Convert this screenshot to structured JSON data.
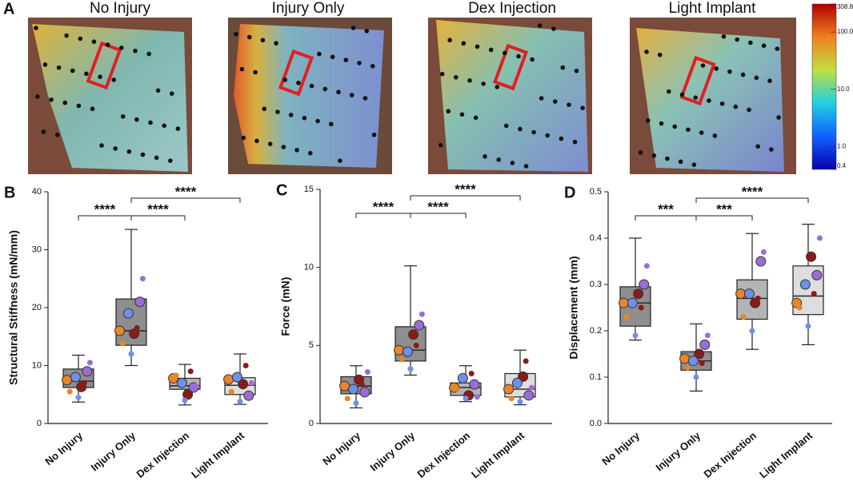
{
  "heatmaps": {
    "panel": "A",
    "titles": [
      "No Injury",
      "Injury Only",
      "Dex Injection",
      "Light Implant"
    ],
    "colorbar": {
      "scale": "log",
      "lim": [
        0.4,
        308.8
      ],
      "ticks": [
        308.8,
        {
          "value": 100,
          "label": "100.0"
        },
        {
          "value": 10,
          "label": "10.0"
        },
        {
          "value": 1,
          "label": "1.0"
        },
        0.4
      ]
    }
  },
  "chart_data": [
    {
      "type": "box",
      "panel": "B",
      "ylabel": "Structural Stiffness (mN/mm)",
      "ylim": [
        0,
        40
      ],
      "yticks": [
        0,
        10,
        20,
        30,
        40
      ],
      "categories": [
        "No Injury",
        "Injury Only",
        "Dex Injection",
        "Light Implant"
      ],
      "boxes": [
        {
          "min": 3.7,
          "q1": 6.2,
          "median": 7.3,
          "q3": 9.4,
          "max": 11.8,
          "color": "#8e8e8e"
        },
        {
          "min": 10,
          "q1": 13.5,
          "median": 16,
          "q3": 21.5,
          "max": 33.5,
          "color": "#8e8e8e"
        },
        {
          "min": 3.2,
          "q1": 5.9,
          "median": 6.5,
          "q3": 7.8,
          "max": 10.2,
          "color": "#b4b4b4"
        },
        {
          "min": 3.3,
          "q1": 5,
          "median": 6.6,
          "q3": 7.9,
          "max": 12,
          "color": "#dedede"
        }
      ],
      "points": [
        [
          7.5,
          9,
          6.3,
          8,
          5.5,
          10.5,
          7,
          4.5
        ],
        [
          16,
          21,
          15.5,
          19,
          13.8,
          25,
          16.5,
          12
        ],
        [
          7.8,
          6.2,
          5,
          7,
          8.3,
          6.5,
          9,
          4
        ],
        [
          7.6,
          4.8,
          6.8,
          8,
          5.5,
          7,
          10,
          3.8
        ]
      ],
      "point_colors": [
        "#e8862a",
        "#9a6ed6",
        "#8b1a1a",
        "#6f8fe8"
      ],
      "comparisons": [
        {
          "groups": [
            "No Injury",
            "Injury Only"
          ],
          "label": "****"
        },
        {
          "groups": [
            "Injury Only",
            "Dex Injection"
          ],
          "label": "****"
        },
        {
          "groups": [
            "Injury Only",
            "Light Implant"
          ],
          "label": "****"
        }
      ]
    },
    {
      "type": "box",
      "panel": "C",
      "ylabel": "Force (mN)",
      "ylim": [
        0,
        15
      ],
      "yticks": [
        0,
        5,
        10,
        15
      ],
      "categories": [
        "No Injury",
        "Injury Only",
        "Dex Injection",
        "Light Implant"
      ],
      "boxes": [
        {
          "min": 1,
          "q1": 1.9,
          "median": 2.4,
          "q3": 3,
          "max": 3.7,
          "color": "#8e8e8e"
        },
        {
          "min": 3.1,
          "q1": 4,
          "median": 4.7,
          "q3": 6.2,
          "max": 10.1,
          "color": "#8e8e8e"
        },
        {
          "min": 1.4,
          "q1": 1.8,
          "median": 2.3,
          "q3": 2.6,
          "max": 3.7,
          "color": "#b4b4b4"
        },
        {
          "min": 1.2,
          "q1": 1.7,
          "median": 2.2,
          "q3": 3.2,
          "max": 4.7,
          "color": "#dedede"
        }
      ],
      "points": [
        [
          2.4,
          2,
          2.8,
          2.2,
          1.6,
          3.3,
          2.5,
          1.3
        ],
        [
          4.7,
          6.3,
          5.7,
          4.6,
          4.1,
          7,
          5,
          3.5
        ],
        [
          2.3,
          2.5,
          1.8,
          2.9,
          2.2,
          1.7,
          3.2,
          1.6
        ],
        [
          2.2,
          1.8,
          3,
          2.6,
          1.6,
          2.3,
          4,
          1.4
        ]
      ],
      "point_colors": [
        "#e8862a",
        "#9a6ed6",
        "#8b1a1a",
        "#6f8fe8"
      ],
      "comparisons": [
        {
          "groups": [
            "No Injury",
            "Injury Only"
          ],
          "label": "****"
        },
        {
          "groups": [
            "Injury Only",
            "Dex Injection"
          ],
          "label": "****"
        },
        {
          "groups": [
            "Injury Only",
            "Light Implant"
          ],
          "label": "****"
        }
      ]
    },
    {
      "type": "box",
      "panel": "D",
      "ylabel": "Displacement (mm)",
      "ylim": [
        0,
        0.5
      ],
      "yticks": [
        {
          "value": 0,
          "label": "0.0"
        },
        0.1,
        0.2,
        0.3,
        0.4,
        0.5
      ],
      "categories": [
        "No Injury",
        "Injury Only",
        "Dex Injection",
        "Light Implant"
      ],
      "boxes": [
        {
          "min": 0.18,
          "q1": 0.21,
          "median": 0.26,
          "q3": 0.295,
          "max": 0.4,
          "color": "#8e8e8e"
        },
        {
          "min": 0.07,
          "q1": 0.115,
          "median": 0.135,
          "q3": 0.155,
          "max": 0.215,
          "color": "#8e8e8e"
        },
        {
          "min": 0.16,
          "q1": 0.225,
          "median": 0.27,
          "q3": 0.31,
          "max": 0.41,
          "color": "#b4b4b4"
        },
        {
          "min": 0.17,
          "q1": 0.235,
          "median": 0.275,
          "q3": 0.34,
          "max": 0.43,
          "color": "#dedede"
        }
      ],
      "points": [
        [
          0.26,
          0.3,
          0.28,
          0.26,
          0.23,
          0.34,
          0.25,
          0.19
        ],
        [
          0.14,
          0.17,
          0.15,
          0.135,
          0.12,
          0.19,
          0.13,
          0.1
        ],
        [
          0.28,
          0.35,
          0.26,
          0.28,
          0.23,
          0.37,
          0.27,
          0.2
        ],
        [
          0.26,
          0.32,
          0.36,
          0.3,
          0.25,
          0.4,
          0.28,
          0.21
        ]
      ],
      "point_colors": [
        "#e8862a",
        "#9a6ed6",
        "#8b1a1a",
        "#6f8fe8"
      ],
      "comparisons": [
        {
          "groups": [
            "No Injury",
            "Injury Only"
          ],
          "label": "***"
        },
        {
          "groups": [
            "Injury Only",
            "Dex Injection"
          ],
          "label": "***"
        },
        {
          "groups": [
            "Injury Only",
            "Light Implant"
          ],
          "label": "****"
        }
      ]
    }
  ]
}
